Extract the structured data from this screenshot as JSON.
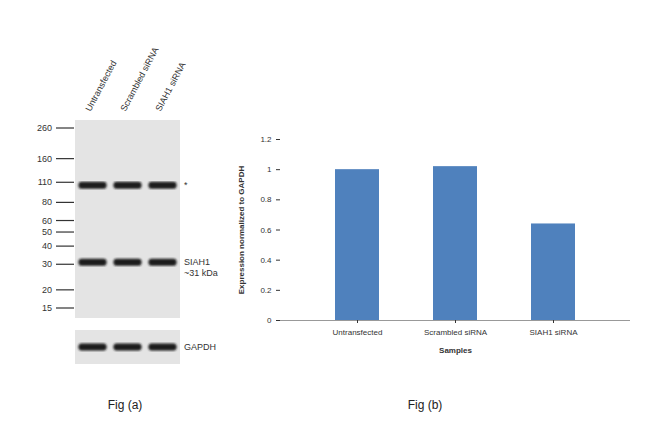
{
  "chart_data": {
    "type": "bar",
    "caption": "Fig (b)",
    "x_label": "Samples",
    "y_label": "Expression normalized to GAPDH",
    "categories": [
      "Untransfected",
      "Scrambled siRNA",
      "SIAH1 siRNA"
    ],
    "values": [
      1,
      1.02,
      0.64
    ],
    "color": "#4f81bd",
    "ylim": [
      0,
      1.2
    ],
    "yticks": [
      0,
      0.2,
      0.4,
      0.6,
      0.8,
      1,
      1.2
    ],
    "grid": false
  },
  "western_blot": {
    "caption": "Fig (a)",
    "lanes": [
      "Untransfected",
      "Scrambled siRNA",
      "SIAH1 siRNA"
    ],
    "marker_kda": [
      260,
      160,
      110,
      80,
      60,
      50,
      40,
      30,
      20,
      15
    ],
    "bands": [
      {
        "kda": 105,
        "labels": [
          "*"
        ]
      },
      {
        "kda": 31,
        "labels": [
          "SIAH1",
          "~31 kDa"
        ]
      }
    ],
    "loading_control": "GAPDH"
  }
}
